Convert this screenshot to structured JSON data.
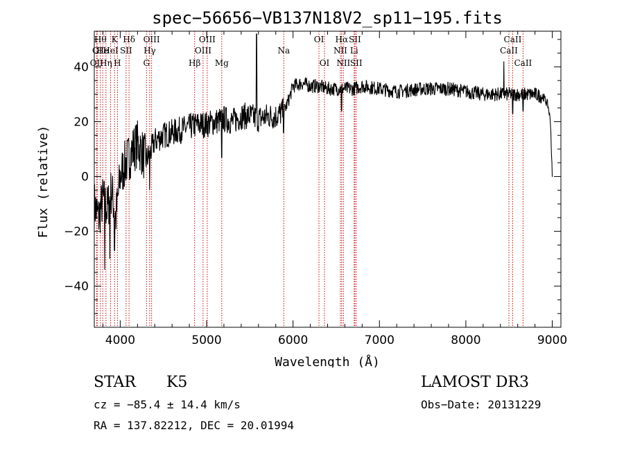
{
  "chart_data": {
    "type": "line",
    "title": "spec−56656−VB137N18V2_sp11−195.fits",
    "xlabel": "Wavelength (Å)",
    "ylabel": "Flux (relative)",
    "xlim": [
      3700,
      9100
    ],
    "ylim": [
      -55,
      53
    ],
    "xticks": [
      4000,
      5000,
      6000,
      7000,
      8000,
      9000
    ],
    "xtick_labels": [
      "4000",
      "5000",
      "6000",
      "7000",
      "8000",
      "9000"
    ],
    "yticks": [
      -40,
      -20,
      0,
      20,
      40
    ],
    "ytick_labels": [
      "−40",
      "−20",
      "0",
      "20",
      "40"
    ],
    "line_color": "#000000",
    "marker_color": "#cc0000",
    "continuum": {
      "x": [
        3700,
        3750,
        3800,
        3850,
        3900,
        3950,
        4000,
        4050,
        4100,
        4150,
        4200,
        4250,
        4300,
        4350,
        4400,
        4500,
        4600,
        4700,
        4800,
        4900,
        5000,
        5100,
        5200,
        5300,
        5400,
        5500,
        5600,
        5700,
        5800,
        5900,
        5950,
        6000,
        6100,
        6200,
        6300,
        6400,
        6500,
        6600,
        6700,
        6800,
        7000,
        7200,
        7500,
        7800,
        8000,
        8200,
        8400,
        8600,
        8800,
        8900,
        8950,
        8980,
        9000
      ],
      "flux": [
        -10,
        -15,
        -8,
        -12,
        -5,
        -15,
        0,
        4,
        7,
        10,
        12,
        9,
        6,
        9,
        13,
        15,
        16,
        17,
        18,
        19,
        19,
        20,
        21,
        20,
        22,
        22,
        21,
        22,
        22,
        24,
        28,
        33,
        34,
        33,
        33,
        32,
        32,
        32,
        32,
        33,
        32,
        31,
        32,
        32,
        31,
        30,
        30,
        30,
        30,
        29,
        26,
        20,
        0
      ]
    },
    "spikes": [
      {
        "x": 5577,
        "flux": 52
      },
      {
        "x": 8440,
        "flux": 42
      }
    ],
    "dips": [
      {
        "x": 3820,
        "flux": -34
      },
      {
        "x": 3880,
        "flux": -30
      },
      {
        "x": 3933,
        "flux": -27
      },
      {
        "x": 4340,
        "flux": -5
      },
      {
        "x": 5175,
        "flux": 7
      },
      {
        "x": 5890,
        "flux": 16
      },
      {
        "x": 6563,
        "flux": 24
      },
      {
        "x": 8542,
        "flux": 23
      },
      {
        "x": 8662,
        "flux": 24
      }
    ],
    "lines": [
      {
        "x": 3727,
        "label": "OII",
        "row": 3
      },
      {
        "x": 3734,
        "label": "OI",
        "row": 2
      },
      {
        "x": 3770,
        "label": "Hθ",
        "row": 1
      },
      {
        "x": 3798,
        "label": "He",
        "row": 2
      },
      {
        "x": 3835,
        "label": "Hη",
        "row": 3
      },
      {
        "x": 3889,
        "label": "HeI",
        "row": 2
      },
      {
        "x": 3934,
        "label": "K",
        "row": 1
      },
      {
        "x": 3968,
        "label": "H",
        "row": 3
      },
      {
        "x": 4068,
        "label": "SII",
        "row": 2
      },
      {
        "x": 4102,
        "label": "Hδ",
        "row": 1
      },
      {
        "x": 4304,
        "label": "G",
        "row": 3
      },
      {
        "x": 4341,
        "label": "Hγ",
        "row": 2
      },
      {
        "x": 4363,
        "label": "OIII",
        "row": 1
      },
      {
        "x": 4861,
        "label": "Hβ",
        "row": 3
      },
      {
        "x": 4959,
        "label": "OIII",
        "row": 2
      },
      {
        "x": 5007,
        "label": "OIII",
        "row": 1
      },
      {
        "x": 5175,
        "label": "Mg",
        "row": 3
      },
      {
        "x": 5893,
        "label": "Na",
        "row": 2
      },
      {
        "x": 6300,
        "label": "OI",
        "row": 1
      },
      {
        "x": 6364,
        "label": "OI",
        "row": 3
      },
      {
        "x": 6548,
        "label": "NII",
        "row": 2
      },
      {
        "x": 6563,
        "label": "Hα",
        "row": 1
      },
      {
        "x": 6583,
        "label": "NII",
        "row": 3
      },
      {
        "x": 6707,
        "label": "Li",
        "row": 2
      },
      {
        "x": 6716,
        "label": "SII",
        "row": 1
      },
      {
        "x": 6731,
        "label": "SII",
        "row": 3
      },
      {
        "x": 8498,
        "label": "CaII",
        "row": 2
      },
      {
        "x": 8542,
        "label": "CaII",
        "row": 1
      },
      {
        "x": 8662,
        "label": "CaII",
        "row": 3
      }
    ]
  },
  "info": {
    "class": "STAR",
    "subclass": "K5",
    "survey": "LAMOST DR3",
    "redshift": "cz = −85.4 ± 14.4 km/s",
    "obs_date": "Obs−Date: 20131229",
    "coords": "RA = 137.82212, DEC =  20.01994"
  }
}
